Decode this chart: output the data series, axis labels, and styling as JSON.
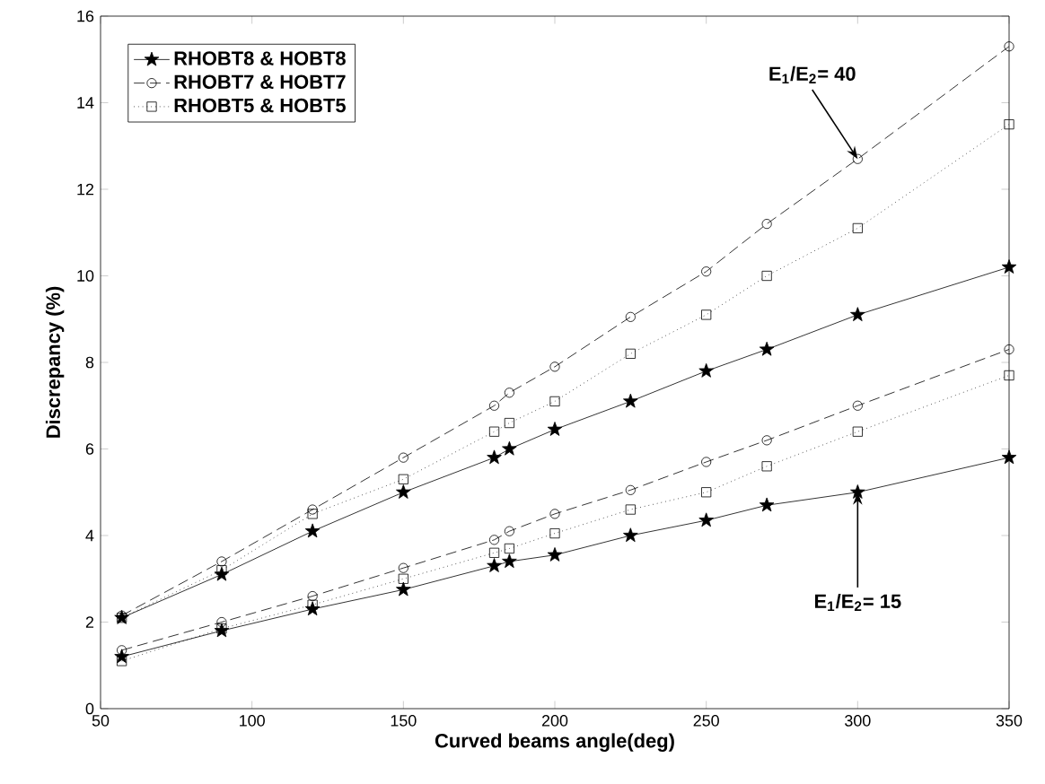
{
  "chart_data": {
    "type": "line",
    "xlabel": "Curved beams angle(deg)",
    "ylabel": "Discrepancy (%)",
    "x": [
      57,
      90,
      120,
      150,
      180,
      185,
      200,
      225,
      250,
      270,
      300,
      350
    ],
    "xlim": [
      50,
      350
    ],
    "xticks": [
      50,
      100,
      150,
      200,
      250,
      300,
      350
    ],
    "ylim": [
      0,
      16
    ],
    "yticks": [
      0,
      2,
      4,
      6,
      8,
      10,
      12,
      14,
      16
    ],
    "grid": false,
    "legend": "top left",
    "series": [
      {
        "name": "RHOBT8 & HOBT8",
        "color": "#000000",
        "marker": "star",
        "line_style": "solid",
        "values": [
          2.1,
          3.1,
          4.1,
          5.0,
          5.8,
          6.0,
          6.45,
          7.1,
          7.8,
          8.3,
          9.1,
          10.2
        ]
      },
      {
        "name": "RHOBT7 & HOBT7",
        "color": "#000000",
        "marker": "circle",
        "line_style": "dashed",
        "values": [
          2.15,
          3.4,
          4.6,
          5.8,
          7.0,
          7.3,
          7.9,
          9.05,
          10.1,
          11.2,
          12.7,
          15.3
        ]
      },
      {
        "name": "RHOBT5 & HOBT5",
        "color": "#000000",
        "marker": "square",
        "line_style": "dotted",
        "values": [
          2.1,
          3.2,
          4.5,
          5.3,
          6.4,
          6.6,
          7.1,
          8.2,
          9.1,
          10.0,
          11.1,
          13.5
        ]
      },
      {
        "color": "#000000",
        "marker": "star",
        "line_style": "solid",
        "values": [
          1.2,
          1.8,
          2.3,
          2.75,
          3.3,
          3.4,
          3.55,
          4.0,
          4.35,
          4.7,
          5.0,
          5.8
        ]
      },
      {
        "color": "#000000",
        "marker": "circle",
        "line_style": "dashed",
        "values": [
          1.35,
          2.0,
          2.6,
          3.25,
          3.9,
          4.1,
          4.5,
          5.05,
          5.7,
          6.2,
          7.0,
          8.3
        ]
      },
      {
        "color": "#000000",
        "marker": "square",
        "line_style": "dotted",
        "values": [
          1.1,
          1.85,
          2.4,
          3.0,
          3.6,
          3.7,
          4.05,
          4.6,
          5.0,
          5.6,
          6.4,
          7.7
        ]
      }
    ],
    "annotations": [
      {
        "text": "E$_{1}$/E$_{2}$= 40",
        "x": 300,
        "y": 12.7
      },
      {
        "text": "E$_{1}$/E$_{2}$= 15",
        "x": 300,
        "y": 5.0
      }
    ]
  }
}
